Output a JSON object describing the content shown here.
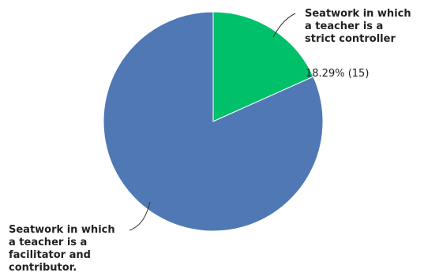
{
  "chart_data": {
    "type": "pie",
    "title": "",
    "slices": [
      {
        "label_lines": [
          "Seatwork in which",
          "a teacher is a",
          "strict controller"
        ],
        "value_label": "18.29% (15)",
        "percent": 18.29,
        "count": 15,
        "color": "#00c06a"
      },
      {
        "label_lines": [
          "Seatwork in which",
          "a teacher is a",
          "facilitator and",
          "contributor."
        ],
        "percent": 81.71,
        "count": 67,
        "color": "#4f78b5"
      }
    ]
  }
}
